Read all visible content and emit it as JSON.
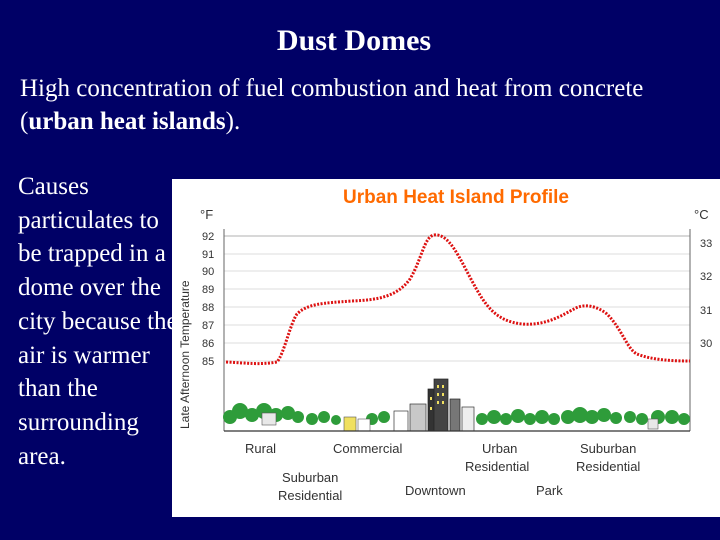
{
  "slide": {
    "title": "Dust Domes",
    "intro_pre": "High concentration of fuel combustion and heat from concrete (",
    "intro_bold": "urban heat islands",
    "intro_post": ").",
    "causes_text": "Causes particulates to be trapped in a dome over the city because the air is warmer than the surrounding area."
  },
  "figure": {
    "title": "Urban Heat Island Profile",
    "ylabel": "Late Afternoon Temperature",
    "unit_f": "°F",
    "unit_c": "°C",
    "f_ticks": [
      "92",
      "91",
      "90",
      "89",
      "88",
      "87",
      "86",
      "85"
    ],
    "c_ticks": [
      "33",
      "32",
      "31",
      "30"
    ],
    "zones": [
      "Rural",
      "Commercial",
      "Urban Residential",
      "Suburban Residential",
      "Suburban Residential",
      "Downtown",
      "Park"
    ],
    "zone_labels": {
      "rural": "Rural",
      "commercial": "Commercial",
      "urban_1": "Urban",
      "urban_2": "Residential",
      "suburban_right_1": "Suburban",
      "suburban_right_2": "Residential",
      "suburban_left_1": "Suburban",
      "suburban_left_2": "Residential",
      "downtown": "Downtown",
      "park": "Park"
    },
    "colors": {
      "title": "#ff6a00",
      "curve": "#dd1111",
      "tree": "#2e9c3a",
      "text": "#333333"
    }
  }
}
